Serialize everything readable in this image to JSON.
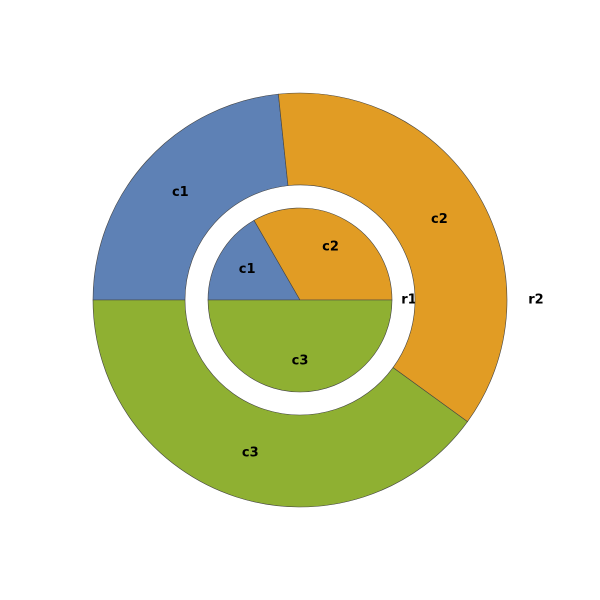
{
  "chart_data": {
    "type": "pie",
    "categories": [
      "c1",
      "c2",
      "c3"
    ],
    "colors": [
      "#5e81b5",
      "#e19c24",
      "#8fb032"
    ],
    "series": [
      {
        "name": "r1",
        "values": [
          1,
          2,
          3
        ]
      },
      {
        "name": "r2",
        "values": [
          7,
          11,
          12
        ]
      }
    ]
  }
}
